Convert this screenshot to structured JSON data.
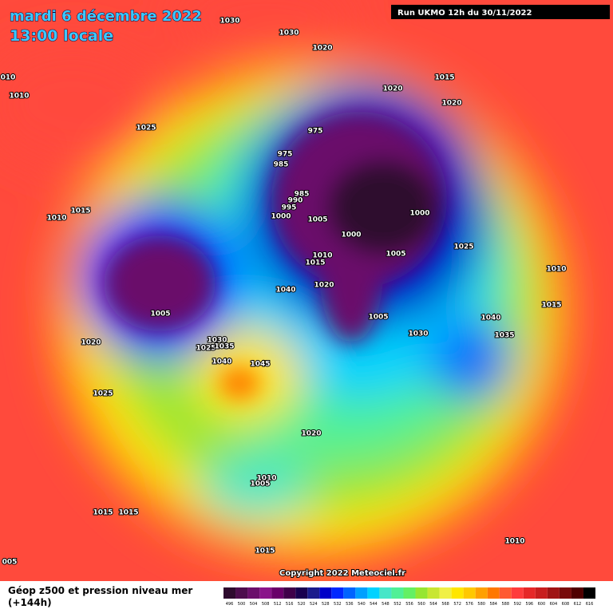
{
  "header": {
    "date": "mardi 6 décembre 2022",
    "time": "13:00 locale",
    "run": "Run UKMO 12h du 30/11/2022"
  },
  "isobar_labels": [
    "1030",
    "1030",
    "1020",
    "010",
    "1010",
    "1015",
    "1020",
    "1020",
    "1025",
    "975",
    "975",
    "985",
    "985",
    "990",
    "995",
    "1000",
    "1005",
    "1000",
    "1010",
    "1015",
    "1000",
    "1005",
    "1025",
    "1010",
    "1015",
    "1020",
    "1040",
    "1010",
    "1015",
    "1005",
    "1005",
    "1040",
    "1030",
    "1035",
    "1020",
    "1030",
    "1025",
    "1035",
    "1040",
    "1045",
    "1025",
    "1020",
    "1010",
    "1005",
    "1015",
    "1015",
    "1010",
    "1015",
    "005"
  ],
  "copyright": "Copyright 2022 Meteociel.fr",
  "legend": {
    "title": "Géop z500 et pression niveau mer",
    "subtitle": "(+144h)",
    "scale": [
      496,
      500,
      504,
      508,
      512,
      516,
      520,
      524,
      528,
      532,
      536,
      540,
      544,
      548,
      552,
      556,
      560,
      564,
      568,
      572,
      576,
      580,
      584,
      588,
      592,
      596,
      600,
      604,
      608,
      612,
      616
    ],
    "colors": [
      "#2e0b2e",
      "#4d0d4d",
      "#6b0f6b",
      "#8a148a",
      "#6a006a",
      "#40004a",
      "#1a0050",
      "#1c1c8c",
      "#0000c8",
      "#0028ff",
      "#0064ff",
      "#00a0ff",
      "#00d2ff",
      "#46e6c8",
      "#50f096",
      "#64f064",
      "#96e632",
      "#c8e632",
      "#f0f046",
      "#ffe600",
      "#ffc800",
      "#ffa000",
      "#ff7800",
      "#ff5a32",
      "#ff3c3c",
      "#e62828",
      "#c81e1e",
      "#a01414",
      "#780a0a",
      "#500000",
      "#000000"
    ]
  }
}
